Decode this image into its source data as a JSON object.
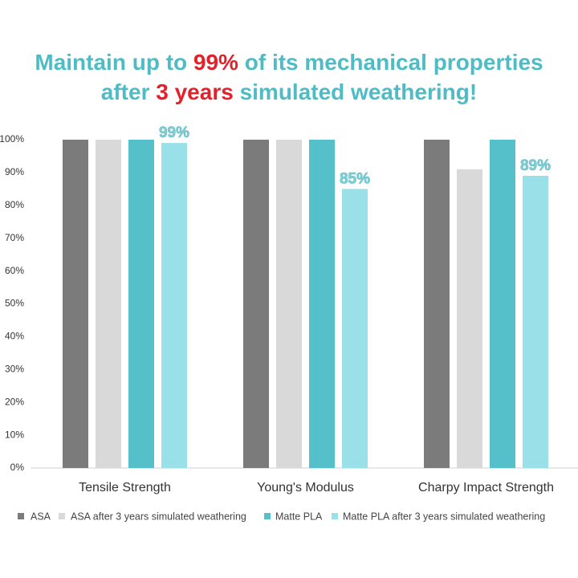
{
  "chart_data": {
    "type": "bar",
    "title_lines": [
      [
        {
          "text": "Maintain up to ",
          "color": "#4fbcc5"
        },
        {
          "text": "99%",
          "color": "#e3212b"
        },
        {
          "text": " of its mechanical properties",
          "color": "#4fbcc5"
        }
      ],
      [
        {
          "text": "after ",
          "color": "#4fbcc5"
        },
        {
          "text": "3 years",
          "color": "#e3212b"
        },
        {
          "text": " simulated weathering!",
          "color": "#4fbcc5"
        }
      ]
    ],
    "categories": [
      "Tensile Strength",
      "Young's Modulus",
      "Charpy Impact Strength"
    ],
    "series": [
      {
        "name": "ASA",
        "color": "#7b7b7b",
        "values": [
          100,
          100,
          100
        ]
      },
      {
        "name": "ASA after 3 years simulated weathering",
        "color": "#d9d9d9",
        "values": [
          100,
          100,
          91
        ]
      },
      {
        "name": "Matte PLA",
        "color": "#55c0ca",
        "values": [
          100,
          100,
          100
        ]
      },
      {
        "name": "Matte PLA after 3 years simulated weathering",
        "color": "#99e0e8",
        "values": [
          99,
          85,
          89
        ],
        "value_labels": [
          "99%",
          "85%",
          "89%"
        ],
        "value_label_color": "#7fd0d8"
      }
    ],
    "ylim": [
      0,
      100
    ],
    "yticks": [
      {
        "value": 0,
        "label": "0%"
      },
      {
        "value": 10,
        "label": "10%"
      },
      {
        "value": 20,
        "label": "20%"
      },
      {
        "value": 30,
        "label": "30%"
      },
      {
        "value": 40,
        "label": "40%"
      },
      {
        "value": 50,
        "label": "50%"
      },
      {
        "value": 60,
        "label": "60%"
      },
      {
        "value": 70,
        "label": "70%"
      },
      {
        "value": 80,
        "label": "80%"
      },
      {
        "value": 90,
        "label": "90%"
      },
      {
        "value": 100,
        "label": "100%"
      }
    ],
    "grid": false,
    "legend": "bottom"
  }
}
